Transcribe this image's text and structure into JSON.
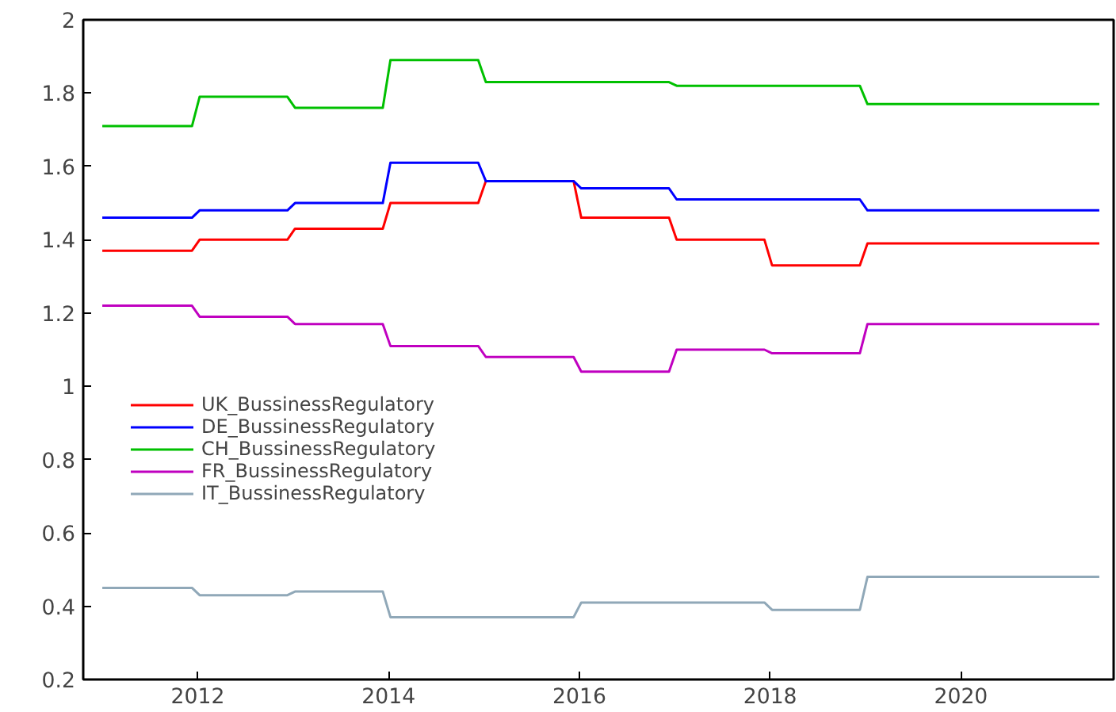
{
  "chart_data": {
    "type": "line",
    "x": [
      2011.0,
      2011.94,
      2012.02,
      2012.94,
      2013.02,
      2013.94,
      2014.02,
      2014.94,
      2015.02,
      2015.94,
      2016.02,
      2016.94,
      2017.02,
      2017.94,
      2018.02,
      2018.94,
      2019.02,
      2021.45
    ],
    "series": [
      {
        "name": "UK_BussinessRegulatory",
        "color": "#ff0000",
        "values": [
          1.37,
          1.37,
          1.4,
          1.4,
          1.43,
          1.43,
          1.5,
          1.5,
          1.56,
          1.56,
          1.46,
          1.46,
          1.4,
          1.4,
          1.33,
          1.33,
          1.39,
          1.39
        ]
      },
      {
        "name": "DE_BussinessRegulatory",
        "color": "#0000ff",
        "values": [
          1.46,
          1.46,
          1.48,
          1.48,
          1.5,
          1.5,
          1.61,
          1.61,
          1.56,
          1.56,
          1.54,
          1.54,
          1.51,
          1.51,
          1.51,
          1.51,
          1.48,
          1.48
        ]
      },
      {
        "name": "CH_BussinessRegulatory",
        "color": "#00c000",
        "values": [
          1.71,
          1.71,
          1.79,
          1.79,
          1.76,
          1.76,
          1.89,
          1.89,
          1.83,
          1.83,
          1.83,
          1.83,
          1.82,
          1.82,
          1.82,
          1.82,
          1.77,
          1.77
        ]
      },
      {
        "name": "FR_BussinessRegulatory",
        "color": "#c000c0",
        "values": [
          1.22,
          1.22,
          1.19,
          1.19,
          1.17,
          1.17,
          1.11,
          1.11,
          1.08,
          1.08,
          1.04,
          1.04,
          1.1,
          1.1,
          1.09,
          1.09,
          1.17,
          1.17
        ]
      },
      {
        "name": "IT_BussinessRegulatory",
        "color": "#90a8b8",
        "values": [
          0.45,
          0.45,
          0.43,
          0.43,
          0.44,
          0.44,
          0.37,
          0.37,
          0.37,
          0.37,
          0.41,
          0.41,
          0.41,
          0.41,
          0.39,
          0.39,
          0.48,
          0.48
        ]
      }
    ],
    "xlim": [
      2010.8,
      2021.6
    ],
    "xticks": [
      2012,
      2014,
      2016,
      2018,
      2020
    ],
    "ylim": [
      0.2,
      2
    ],
    "yticks": [
      0.2,
      0.4,
      0.6,
      0.8,
      1,
      1.2,
      1.4,
      1.6,
      1.8,
      2
    ],
    "grid": false,
    "legend": "left"
  }
}
